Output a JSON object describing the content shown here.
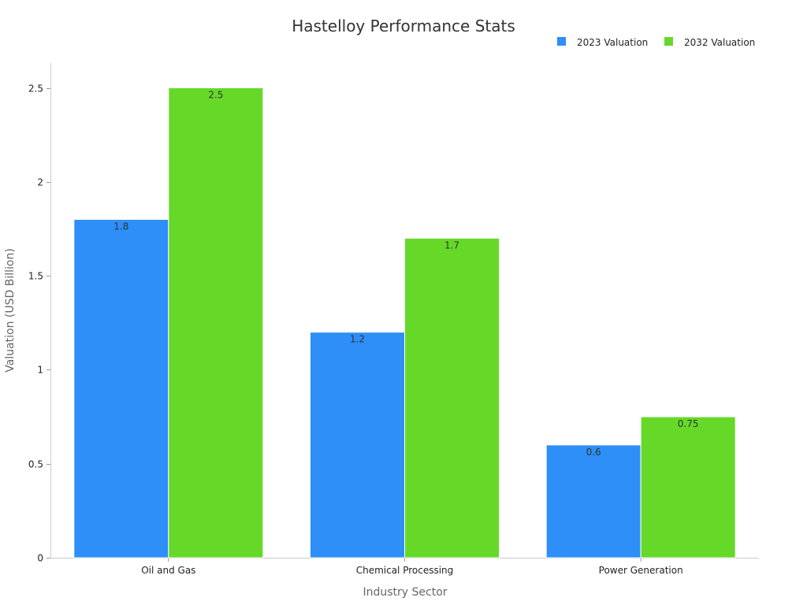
{
  "chart_data": {
    "type": "bar",
    "title": "Hastelloy Performance Stats",
    "xlabel": "Industry Sector",
    "ylabel": "Valuation (USD Billion)",
    "categories": [
      "Oil and Gas",
      "Chemical Processing",
      "Power Generation"
    ],
    "series": [
      {
        "name": "2023 Valuation",
        "values": [
          1.8,
          1.2,
          0.6
        ],
        "color": "#2d8ff7"
      },
      {
        "name": "2032 Valuation",
        "values": [
          2.5,
          1.7,
          0.75
        ],
        "color": "#66d928"
      }
    ],
    "ylim": [
      0,
      2.6
    ],
    "yticks": [
      0,
      0.5,
      1,
      1.5,
      2,
      2.5
    ],
    "ytick_labels": [
      "0",
      "0.5",
      "1",
      "1.5",
      "2",
      "2.5"
    ],
    "grid": false,
    "legend_position": "top-right"
  }
}
